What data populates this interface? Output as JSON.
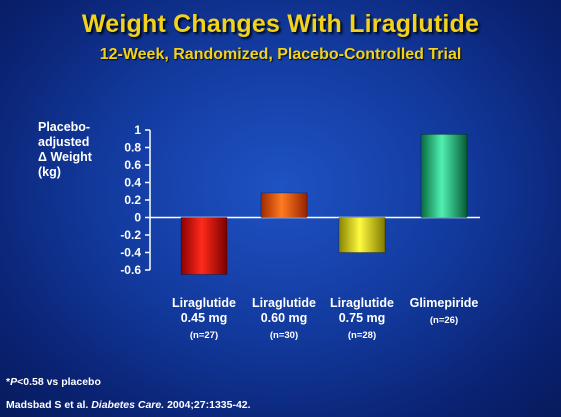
{
  "slide": {
    "title": "Weight Changes With Liraglutide",
    "subtitle": "12-Week, Randomized, Placebo-Controlled Trial",
    "footnote_prefix": "*",
    "footnote_p": "P",
    "footnote_rest": "<0.58 vs placebo",
    "citation_authors": "Madsbad S et al.",
    "citation_journal": "Diabetes Care.",
    "citation_ref": "2004;27:1335-42."
  },
  "chart_data": {
    "type": "bar",
    "ylabel_lines": [
      "Placebo-",
      "adjusted",
      "Δ Weight",
      "(kg)"
    ],
    "ylim": [
      -0.6,
      1
    ],
    "yticks": [
      1,
      0.8,
      0.6,
      0.4,
      0.2,
      0,
      -0.2,
      -0.4,
      -0.6
    ],
    "ytick_labels": [
      "1",
      "0.8",
      "0.6",
      "0.4",
      "0.2",
      "0",
      "-0.2",
      "-0.4",
      "-0.6"
    ],
    "grid": false,
    "categories": [
      {
        "line1": "Liraglutide",
        "line2": "0.45 mg",
        "n": "(n=27)"
      },
      {
        "line1": "Liraglutide",
        "line2": "0.60 mg",
        "n": "(n=30)"
      },
      {
        "line1": "Liraglutide",
        "line2": "0.75 mg",
        "n": "(n=28)"
      },
      {
        "line1": "Glimepiride",
        "line2": "",
        "n": "(n=26)"
      }
    ],
    "values": [
      -0.65,
      0.28,
      -0.4,
      0.95
    ],
    "colors": [
      "#e01010",
      "#f05a0a",
      "#f0e814",
      "#20c080"
    ]
  }
}
